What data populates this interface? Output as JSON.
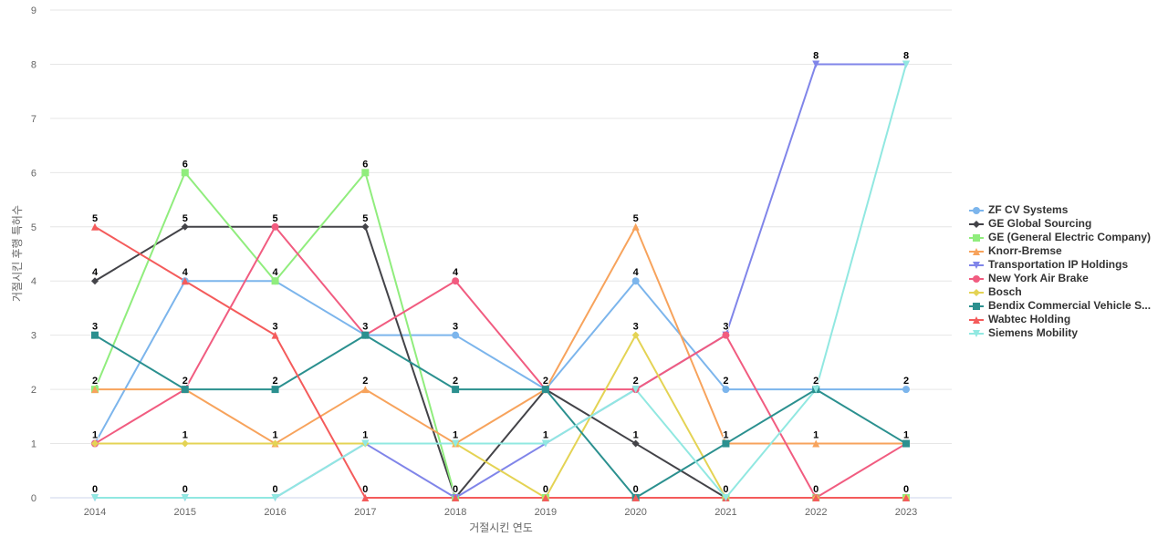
{
  "chart_data": {
    "type": "line",
    "title": "",
    "xlabel": "거절시킨 연도",
    "ylabel": "거절시킨 후행 특허수",
    "categories": [
      "2014",
      "2015",
      "2016",
      "2017",
      "2018",
      "2019",
      "2020",
      "2021",
      "2022",
      "2023"
    ],
    "ylim": [
      0,
      9
    ],
    "yticks": [
      0,
      1,
      2,
      3,
      4,
      5,
      6,
      7,
      8,
      9
    ],
    "grid": true,
    "legend_position": "right",
    "series": [
      {
        "name": "ZF CV Systems",
        "color": "#7cb5ec",
        "marker": "circle",
        "values": [
          1,
          4,
          4,
          3,
          3,
          2,
          4,
          2,
          2,
          2
        ]
      },
      {
        "name": "GE Global Sourcing",
        "color": "#434348",
        "marker": "diamond",
        "values": [
          4,
          5,
          5,
          5,
          0,
          2,
          1,
          0,
          0,
          0
        ]
      },
      {
        "name": "GE (General Electric Company)",
        "color": "#90ed7d",
        "marker": "square",
        "values": [
          2,
          6,
          4,
          6,
          0,
          0,
          0,
          0,
          0,
          0
        ]
      },
      {
        "name": "Knorr-Bremse",
        "color": "#f7a35c",
        "marker": "triangle",
        "values": [
          2,
          2,
          1,
          2,
          1,
          2,
          5,
          1,
          1,
          1
        ]
      },
      {
        "name": "Transportation IP Holdings",
        "color": "#8085e9",
        "marker": "triangle-down",
        "values": [
          0,
          0,
          0,
          1,
          0,
          1,
          2,
          3,
          8,
          8
        ]
      },
      {
        "name": "New York Air Brake",
        "color": "#f15c80",
        "marker": "circle",
        "values": [
          1,
          2,
          5,
          3,
          4,
          2,
          2,
          3,
          0,
          1
        ]
      },
      {
        "name": "Bosch",
        "color": "#e4d354",
        "marker": "diamond",
        "values": [
          1,
          1,
          1,
          1,
          1,
          0,
          3,
          0,
          0,
          0
        ]
      },
      {
        "name": "Bendix Commercial Vehicle S...",
        "color": "#2b908f",
        "marker": "square",
        "values": [
          3,
          2,
          2,
          3,
          2,
          2,
          0,
          1,
          2,
          1
        ]
      },
      {
        "name": "Wabtec Holding",
        "color": "#f45b5b",
        "marker": "triangle",
        "values": [
          5,
          4,
          3,
          0,
          0,
          0,
          0,
          0,
          0,
          0
        ]
      },
      {
        "name": "Siemens Mobility",
        "color": "#91e8e1",
        "marker": "triangle-down",
        "values": [
          0,
          0,
          0,
          1,
          1,
          1,
          2,
          0,
          2,
          8
        ]
      }
    ],
    "data_labels": [
      {
        "x": "2014",
        "y": 5,
        "text": "5"
      },
      {
        "x": "2014",
        "y": 4,
        "text": "4"
      },
      {
        "x": "2014",
        "y": 3,
        "text": "3"
      },
      {
        "x": "2014",
        "y": 2,
        "text": "2"
      },
      {
        "x": "2014",
        "y": 1,
        "text": "1"
      },
      {
        "x": "2014",
        "y": 0,
        "text": "0"
      },
      {
        "x": "2015",
        "y": 6,
        "text": "6"
      },
      {
        "x": "2015",
        "y": 5,
        "text": "5"
      },
      {
        "x": "2015",
        "y": 4,
        "text": "4"
      },
      {
        "x": "2015",
        "y": 2,
        "text": "2"
      },
      {
        "x": "2015",
        "y": 1,
        "text": "1"
      },
      {
        "x": "2015",
        "y": 0,
        "text": "0"
      },
      {
        "x": "2016",
        "y": 5,
        "text": "5"
      },
      {
        "x": "2016",
        "y": 4,
        "text": "4"
      },
      {
        "x": "2016",
        "y": 3,
        "text": "3"
      },
      {
        "x": "2016",
        "y": 2,
        "text": "2"
      },
      {
        "x": "2016",
        "y": 1,
        "text": "1"
      },
      {
        "x": "2016",
        "y": 0,
        "text": "0"
      },
      {
        "x": "2017",
        "y": 6,
        "text": "6"
      },
      {
        "x": "2017",
        "y": 5,
        "text": "5"
      },
      {
        "x": "2017",
        "y": 3,
        "text": "3"
      },
      {
        "x": "2017",
        "y": 2,
        "text": "2"
      },
      {
        "x": "2017",
        "y": 1,
        "text": "1"
      },
      {
        "x": "2017",
        "y": 0,
        "text": "0"
      },
      {
        "x": "2018",
        "y": 4,
        "text": "4"
      },
      {
        "x": "2018",
        "y": 3,
        "text": "3"
      },
      {
        "x": "2018",
        "y": 2,
        "text": "2"
      },
      {
        "x": "2018",
        "y": 1,
        "text": "1"
      },
      {
        "x": "2018",
        "y": 0,
        "text": "0"
      },
      {
        "x": "2019",
        "y": 2,
        "text": "2"
      },
      {
        "x": "2019",
        "y": 1,
        "text": "1"
      },
      {
        "x": "2019",
        "y": 0,
        "text": "0"
      },
      {
        "x": "2020",
        "y": 5,
        "text": "5"
      },
      {
        "x": "2020",
        "y": 4,
        "text": "4"
      },
      {
        "x": "2020",
        "y": 3,
        "text": "3"
      },
      {
        "x": "2020",
        "y": 2,
        "text": "2"
      },
      {
        "x": "2020",
        "y": 1,
        "text": "1"
      },
      {
        "x": "2020",
        "y": 0,
        "text": "0"
      },
      {
        "x": "2021",
        "y": 3,
        "text": "3"
      },
      {
        "x": "2021",
        "y": 2,
        "text": "2"
      },
      {
        "x": "2021",
        "y": 1,
        "text": "1"
      },
      {
        "x": "2021",
        "y": 0,
        "text": "0"
      },
      {
        "x": "2022",
        "y": 8,
        "text": "8"
      },
      {
        "x": "2022",
        "y": 2,
        "text": "2"
      },
      {
        "x": "2022",
        "y": 1,
        "text": "1"
      },
      {
        "x": "2022",
        "y": 0,
        "text": "0"
      },
      {
        "x": "2023",
        "y": 8,
        "text": "8"
      },
      {
        "x": "2023",
        "y": 2,
        "text": "2"
      },
      {
        "x": "2023",
        "y": 1,
        "text": "1"
      },
      {
        "x": "2023",
        "y": 0,
        "text": "0"
      }
    ]
  }
}
